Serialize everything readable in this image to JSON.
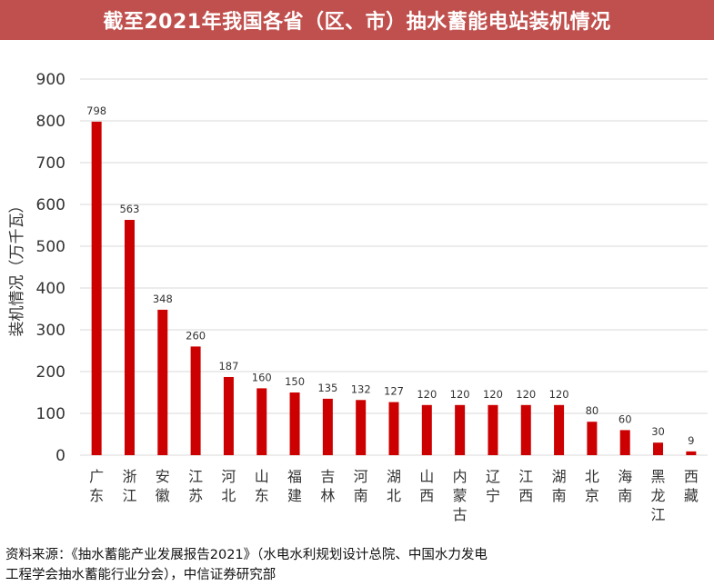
{
  "header": {
    "title": "截至2021年我国各省（区、市）抽水蓄能电站装机情况"
  },
  "colors": {
    "title_bg": "#c0504d",
    "bar": "#cc0000",
    "grid": "#d9d9d9"
  },
  "chart_data": {
    "type": "bar",
    "title": "截至2021年我国各省（区、市）抽水蓄能电站装机情况",
    "xlabel": "",
    "ylabel": "装机情况（万千瓦）",
    "ylim": [
      0,
      900
    ],
    "yticks": [
      0,
      100,
      200,
      300,
      400,
      500,
      600,
      700,
      800,
      900
    ],
    "grid": true,
    "legend": "none",
    "categories": [
      "广东",
      "浙江",
      "安徽",
      "江苏",
      "河北",
      "山东",
      "福建",
      "吉林",
      "河南",
      "湖北",
      "山西",
      "内蒙古",
      "辽宁",
      "江西",
      "湖南",
      "北京",
      "海南",
      "黑龙江",
      "西藏"
    ],
    "values": [
      798,
      563,
      348,
      260,
      187,
      160,
      150,
      135,
      132,
      127,
      120,
      120,
      120,
      120,
      120,
      80,
      60,
      30,
      9
    ]
  },
  "source": {
    "line1": "资料来源：《抽水蓄能产业发展报告2021》（水电水利规划设计总院、中国水力发电",
    "line2": "工程学会抽水蓄能行业分会），中信证券研究部"
  }
}
